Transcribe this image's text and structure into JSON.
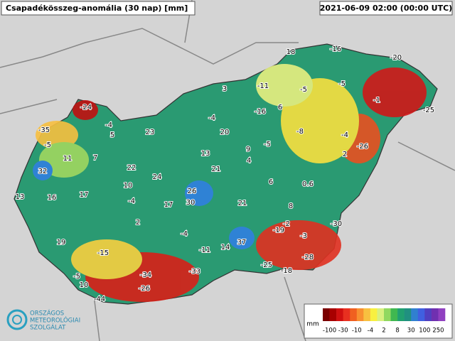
{
  "header": {
    "title": "Csapadékösszeg-anomália (30 nap) [mm]",
    "timestamp": "2021-06-09 02:00 (00:00 UTC)"
  },
  "stations": [
    18,
    -16,
    -20,
    3,
    -11,
    -5,
    -5,
    -1,
    -25,
    -24,
    -4,
    -16,
    6,
    -35,
    -4,
    5,
    23,
    20,
    -8,
    -4,
    -5,
    11,
    7,
    13,
    9,
    -5,
    -26,
    2,
    4,
    32,
    22,
    21,
    24,
    6,
    0.6,
    10,
    26,
    13,
    16,
    17,
    -4,
    17,
    30,
    21,
    8,
    2,
    -2,
    -19,
    -30,
    -3,
    -4,
    19,
    37,
    14,
    -11,
    -15,
    -28,
    -25,
    -18,
    -34,
    -33,
    -5,
    10,
    -26,
    -44
  ],
  "legend": {
    "unit": "mm",
    "ticks": [
      -100,
      -30,
      -10,
      -4,
      2,
      8,
      30,
      100,
      250
    ],
    "colors": [
      "#7a0000",
      "#a80000",
      "#d01010",
      "#e83020",
      "#f06020",
      "#f89030",
      "#f8c040",
      "#f8f040",
      "#d8f080",
      "#90d860",
      "#40b850",
      "#20a070",
      "#209080",
      "#3080d0",
      "#4060e0",
      "#5040c0",
      "#7030b0",
      "#9040c0"
    ]
  },
  "logo": {
    "lines": [
      "ORSZÁGOS",
      "METEOROLÓGIAI",
      "SZOLGÁLAT"
    ]
  }
}
